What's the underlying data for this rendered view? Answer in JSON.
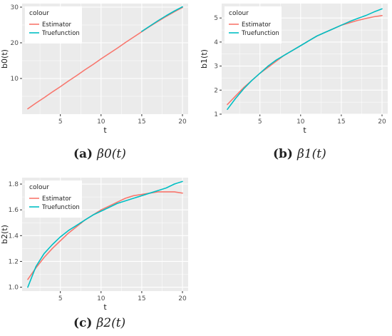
{
  "colors": {
    "panel_bg": "#EBEBEB",
    "grid": "#FFFFFF",
    "estimator": "#F8766D",
    "truefunction": "#00BFC4",
    "text": "#222222",
    "tick_text": "#4D4D4D"
  },
  "chart_data": [
    {
      "type": "line",
      "caption_label": "(a)",
      "caption_math": "β0(t)",
      "xlabel": "t",
      "ylabel": "b0(t)",
      "xlim": [
        0.3,
        20.7
      ],
      "ylim": [
        0.0,
        31.0
      ],
      "xticks": [
        5,
        10,
        15,
        20
      ],
      "yticks": [
        10,
        20,
        30
      ],
      "grid": true,
      "legend": {
        "title": "colour",
        "position": "top-left",
        "entries": [
          "Estimator",
          "Truefunction"
        ]
      },
      "series": [
        {
          "name": "Estimator",
          "color": "#F8766D",
          "x": [
            1,
            2,
            3,
            4,
            5,
            6,
            7,
            8,
            9,
            10,
            11,
            12,
            13,
            14,
            15,
            16,
            17,
            18,
            19,
            20
          ],
          "y": [
            1.5,
            3.1,
            4.6,
            6.2,
            7.7,
            9.3,
            10.8,
            12.4,
            13.9,
            15.5,
            17.0,
            18.5,
            20.1,
            21.6,
            23.1,
            24.6,
            26.0,
            27.4,
            28.7,
            29.9
          ]
        },
        {
          "name": "Truefunction",
          "color": "#00BFC4",
          "x": [
            15,
            16,
            17,
            18,
            19,
            20
          ],
          "y": [
            23.2,
            24.7,
            26.2,
            27.6,
            28.9,
            30.1
          ]
        }
      ]
    },
    {
      "type": "line",
      "caption_label": "(b)",
      "caption_math": "β1(t)",
      "xlabel": "t",
      "ylabel": "b1(t)",
      "xlim": [
        0.3,
        20.7
      ],
      "ylim": [
        1.0,
        5.6
      ],
      "xticks": [
        5,
        10,
        15,
        20
      ],
      "yticks": [
        1,
        2,
        3,
        4,
        5
      ],
      "grid": true,
      "legend": {
        "title": "colour",
        "position": "top-left",
        "entries": [
          "Estimator",
          "Truefunction"
        ]
      },
      "series": [
        {
          "name": "Estimator",
          "color": "#F8766D",
          "x": [
            1,
            2,
            3,
            4,
            5,
            6,
            7,
            8,
            9,
            10,
            11,
            12,
            13,
            14,
            15,
            16,
            17,
            18,
            19,
            20
          ],
          "y": [
            1.4,
            1.75,
            2.1,
            2.4,
            2.7,
            2.95,
            3.2,
            3.45,
            3.65,
            3.85,
            4.05,
            4.25,
            4.4,
            4.55,
            4.7,
            4.8,
            4.9,
            4.98,
            5.05,
            5.1
          ]
        },
        {
          "name": "Truefunction",
          "color": "#00BFC4",
          "x": [
            1,
            2,
            3,
            4,
            5,
            6,
            7,
            8,
            9,
            10,
            11,
            12,
            13,
            14,
            15,
            16,
            17,
            18,
            19,
            20
          ],
          "y": [
            1.2,
            1.65,
            2.05,
            2.4,
            2.7,
            3.0,
            3.25,
            3.45,
            3.65,
            3.85,
            4.05,
            4.25,
            4.4,
            4.55,
            4.7,
            4.85,
            4.98,
            5.1,
            5.25,
            5.38
          ]
        }
      ]
    },
    {
      "type": "line",
      "caption_label": "(c)",
      "caption_math": "β2(t)",
      "xlabel": "t",
      "ylabel": "b2(t)",
      "xlim": [
        0.3,
        20.7
      ],
      "ylim": [
        0.97,
        1.85
      ],
      "xticks": [
        5,
        10,
        15,
        20
      ],
      "yticks": [
        1.0,
        1.2,
        1.4,
        1.6,
        1.8
      ],
      "ytick_labels": [
        "1.0",
        "1.2",
        "1.4",
        "1.6",
        "1.8"
      ],
      "grid": true,
      "legend": {
        "title": "colour",
        "position": "top-left",
        "entries": [
          "Estimator",
          "Truefunction"
        ]
      },
      "series": [
        {
          "name": "Estimator",
          "color": "#F8766D",
          "x": [
            1,
            2,
            3,
            4,
            5,
            6,
            7,
            8,
            9,
            10,
            11,
            12,
            13,
            14,
            15,
            16,
            17,
            18,
            19,
            20
          ],
          "y": [
            1.06,
            1.15,
            1.23,
            1.3,
            1.36,
            1.42,
            1.47,
            1.52,
            1.56,
            1.6,
            1.63,
            1.66,
            1.69,
            1.71,
            1.72,
            1.73,
            1.74,
            1.74,
            1.74,
            1.73
          ]
        },
        {
          "name": "Truefunction",
          "color": "#00BFC4",
          "x": [
            1,
            2,
            3,
            4,
            5,
            6,
            7,
            8,
            9,
            10,
            11,
            12,
            13,
            14,
            15,
            16,
            17,
            18,
            19,
            20
          ],
          "y": [
            1.0,
            1.16,
            1.26,
            1.33,
            1.39,
            1.44,
            1.48,
            1.52,
            1.56,
            1.59,
            1.62,
            1.65,
            1.67,
            1.69,
            1.71,
            1.73,
            1.75,
            1.77,
            1.8,
            1.82
          ]
        }
      ]
    }
  ]
}
